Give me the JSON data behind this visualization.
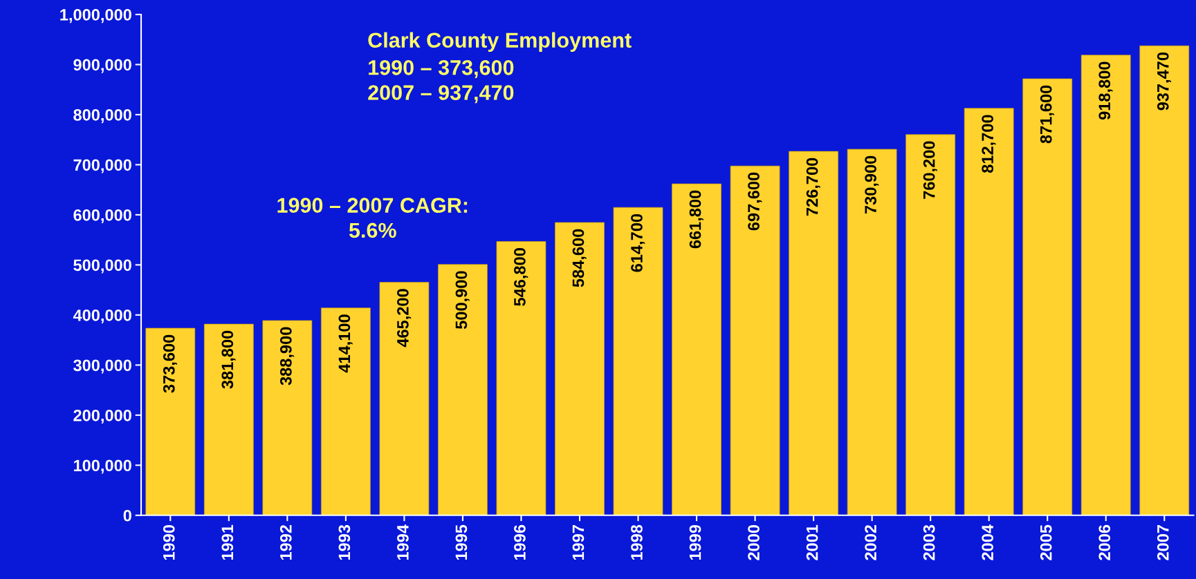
{
  "chart_data": {
    "type": "bar",
    "title": "Clark County Employment",
    "annotations": [
      "1990 – 373,600\n2007 – 937,470",
      "1990 – 2007 CAGR:\n5.6%"
    ],
    "categories": [
      "1990",
      "1991",
      "1992",
      "1993",
      "1994",
      "1995",
      "1996",
      "1997",
      "1998",
      "1999",
      "2000",
      "2001",
      "2002",
      "2003",
      "2004",
      "2005",
      "2006",
      "2007"
    ],
    "values": [
      373600,
      381800,
      388900,
      414100,
      465200,
      500900,
      546800,
      584600,
      614700,
      661800,
      697600,
      726700,
      730900,
      760200,
      812700,
      871600,
      918800,
      937470
    ],
    "color": "#ffd22e",
    "value_labels": [
      "373,600",
      "381,800",
      "388,900",
      "414,100",
      "465,200",
      "500,900",
      "546,800",
      "584,600",
      "614,700",
      "661,800",
      "697,600",
      "726,700",
      "730,900",
      "760,200",
      "812,700",
      "871,600",
      "918,800",
      "937,470"
    ],
    "ylim": [
      0,
      1000000
    ],
    "yticks": [
      0,
      {
        "value": 100000,
        "label": "100,000"
      },
      {
        "value": 200000,
        "label": "200,000"
      },
      {
        "value": 300000,
        "label": "300,000"
      },
      {
        "value": 400000,
        "label": "400,000"
      },
      {
        "value": 500000,
        "label": "500,000"
      },
      {
        "value": 600000,
        "label": "600,000"
      },
      {
        "value": 700000,
        "label": "700,000"
      },
      {
        "value": 800000,
        "label": "800,000"
      },
      {
        "value": 900000,
        "label": "900,000"
      },
      {
        "value": 1000000,
        "label": "1,000,000"
      }
    ]
  }
}
